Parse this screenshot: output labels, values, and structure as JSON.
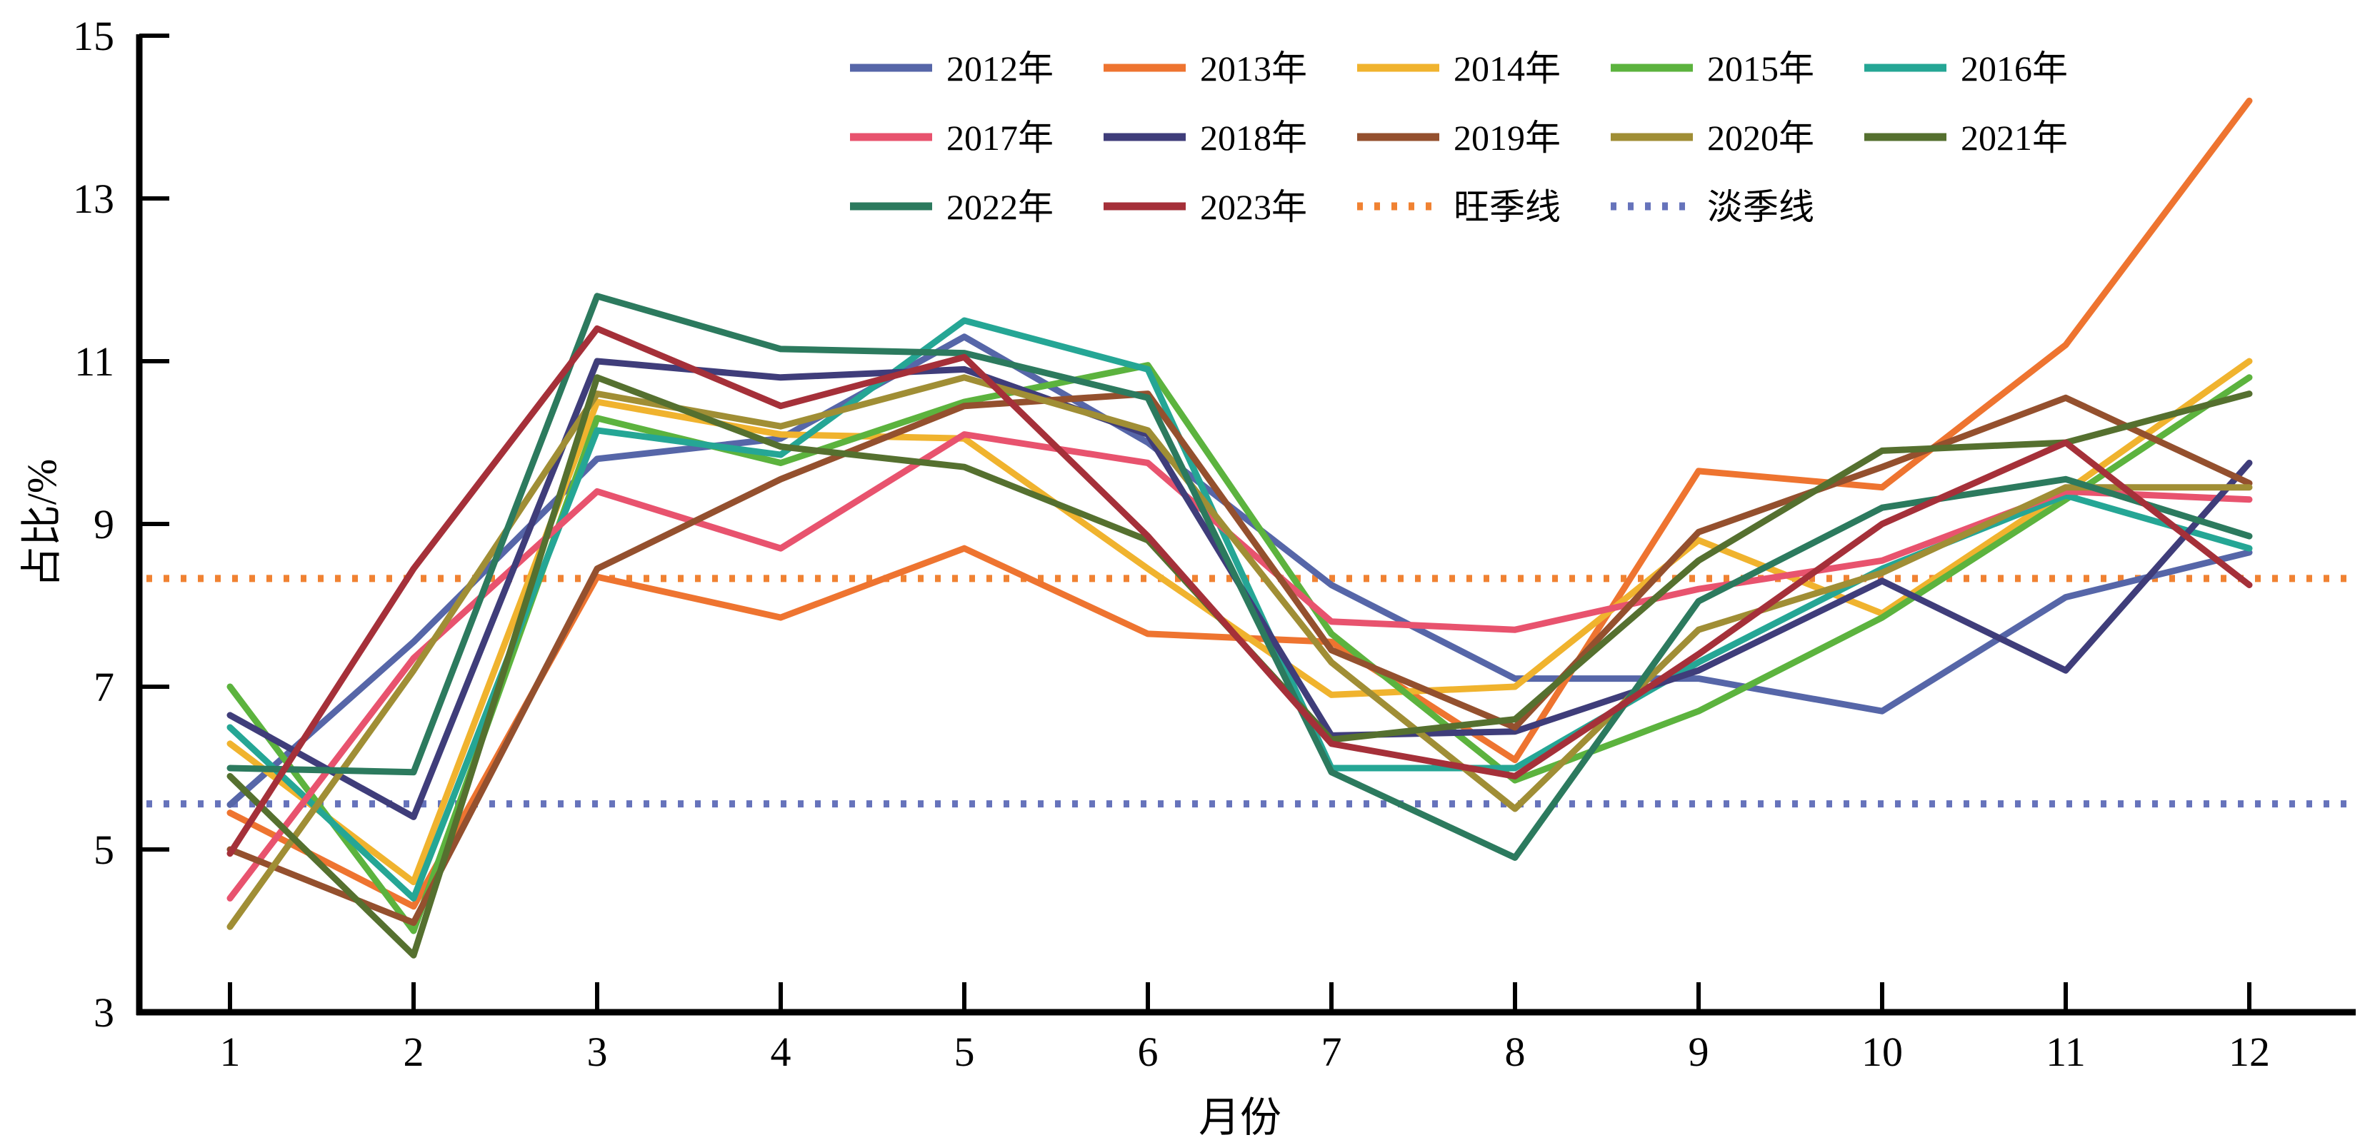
{
  "chart_data": {
    "type": "line",
    "title": "",
    "xlabel": "月份",
    "ylabel": "占比/%",
    "x": [
      1,
      2,
      3,
      4,
      5,
      6,
      7,
      8,
      9,
      10,
      11,
      12
    ],
    "xlim": [
      0.7,
      12.3
    ],
    "ylim": [
      3,
      15
    ],
    "yticks": [
      3,
      5,
      7,
      9,
      11,
      13,
      15
    ],
    "xticks": [
      1,
      2,
      3,
      4,
      5,
      6,
      7,
      8,
      9,
      10,
      11,
      12
    ],
    "grid": "off",
    "legend_position": "top-center, 3 rows",
    "series": [
      {
        "name": "2012年",
        "color": "#5666a8",
        "values": [
          5.55,
          7.55,
          9.8,
          10.05,
          11.3,
          10.0,
          8.25,
          7.1,
          7.1,
          6.7,
          8.1,
          8.65
        ]
      },
      {
        "name": "2013年",
        "color": "#ee7430",
        "values": [
          5.45,
          4.3,
          8.35,
          7.85,
          8.7,
          7.65,
          7.55,
          6.1,
          9.65,
          9.45,
          11.2,
          14.2
        ]
      },
      {
        "name": "2014年",
        "color": "#f0b32e",
        "values": [
          6.3,
          4.6,
          10.5,
          10.1,
          10.05,
          8.45,
          6.9,
          7.0,
          8.8,
          7.9,
          9.4,
          11.0
        ]
      },
      {
        "name": "2015年",
        "color": "#5cb33e",
        "values": [
          7.0,
          4.0,
          10.3,
          9.75,
          10.5,
          10.95,
          7.65,
          5.85,
          6.7,
          7.85,
          9.3,
          10.8
        ]
      },
      {
        "name": "2016年",
        "color": "#25a695",
        "values": [
          6.5,
          4.4,
          10.15,
          9.85,
          11.5,
          10.9,
          6.0,
          6.0,
          7.3,
          8.45,
          9.35,
          8.7
        ]
      },
      {
        "name": "2017年",
        "color": "#e8536e",
        "values": [
          4.4,
          7.35,
          9.4,
          8.7,
          10.1,
          9.75,
          7.8,
          7.7,
          8.2,
          8.55,
          9.4,
          9.3
        ]
      },
      {
        "name": "2018年",
        "color": "#3f3d7a",
        "values": [
          6.65,
          5.4,
          11.0,
          10.8,
          10.9,
          10.1,
          6.4,
          6.45,
          7.2,
          8.3,
          7.2,
          9.75
        ]
      },
      {
        "name": "2019年",
        "color": "#94502e",
        "values": [
          5.0,
          4.1,
          8.45,
          9.55,
          10.45,
          10.6,
          7.45,
          6.5,
          8.9,
          9.7,
          10.55,
          9.5
        ]
      },
      {
        "name": "2020年",
        "color": "#a08e35",
        "values": [
          4.05,
          7.2,
          10.6,
          10.2,
          10.8,
          10.15,
          7.3,
          5.5,
          7.7,
          8.4,
          9.45,
          9.45
        ]
      },
      {
        "name": "2021年",
        "color": "#55702f",
        "values": [
          5.9,
          3.7,
          10.8,
          9.95,
          9.7,
          8.8,
          6.35,
          6.6,
          8.55,
          9.9,
          10.0,
          10.6
        ]
      },
      {
        "name": "2022年",
        "color": "#2c7a5e",
        "values": [
          6.0,
          5.95,
          11.8,
          11.15,
          11.1,
          10.55,
          5.95,
          4.9,
          8.05,
          9.2,
          9.55,
          8.85
        ]
      },
      {
        "name": "2023年",
        "color": "#a53039",
        "values": [
          4.95,
          8.45,
          11.4,
          10.45,
          11.05,
          8.85,
          6.3,
          5.9,
          7.4,
          9.0,
          10.0,
          8.25
        ]
      }
    ],
    "reference_lines": [
      {
        "name": "旺季线",
        "value": 8.33,
        "color": "#f08232",
        "style": "dotted"
      },
      {
        "name": "淡季线",
        "value": 5.56,
        "color": "#6673bb",
        "style": "dotted"
      }
    ]
  },
  "axes": {
    "ylabel": "占比/%",
    "xlabel": "月份"
  }
}
